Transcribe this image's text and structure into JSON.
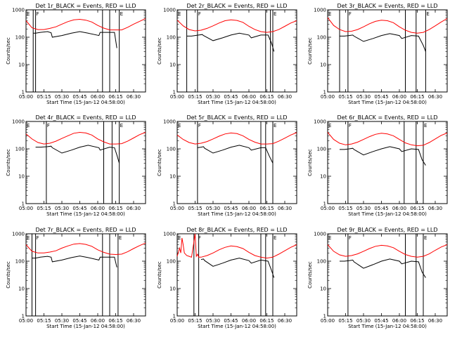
{
  "colors": {
    "events": "#000000",
    "lld": "#ff0000",
    "axes": "#000000",
    "background": "#ffffff"
  },
  "common": {
    "xlabel": "Start Time (15-Jan-12 04:58:00)",
    "ylabel": "Counts/sec",
    "x_ticks": [
      "05:00",
      "05:15",
      "05:30",
      "05:45",
      "06:00",
      "06:15",
      "06:30"
    ],
    "y_ticks": [
      "1",
      "10",
      "100",
      "1000"
    ],
    "ylim": [
      1,
      1000
    ],
    "y_scale": "log",
    "xlim": [
      "05:00",
      "06:40"
    ]
  },
  "chart_data": [
    {
      "type": "line",
      "title": "Det 1r_BLACK = Events, RED = LLD",
      "markers": [
        {
          "label": "E",
          "x": "05:00"
        },
        {
          "label": "F",
          "x": "05:08"
        },
        {
          "label": "E",
          "x": "06:18"
        }
      ],
      "vlines": [
        "05:06",
        "05:08",
        "06:04",
        "06:10",
        "06:18"
      ],
      "series": [
        {
          "name": "Events",
          "x": [
            "05:06",
            "05:08",
            "05:12",
            "05:18",
            "05:21",
            "05:22",
            "05:30",
            "05:38",
            "05:45",
            "05:52",
            "06:01",
            "06:02",
            "06:10",
            "06:14",
            "06:16"
          ],
          "values": [
            140,
            140,
            150,
            160,
            145,
            100,
            115,
            140,
            160,
            140,
            115,
            150,
            150,
            150,
            40
          ]
        },
        {
          "name": "LLD",
          "x": [
            "05:00",
            "05:05",
            "05:10",
            "05:15",
            "05:20",
            "05:25",
            "05:30",
            "05:35",
            "05:40",
            "05:45",
            "05:50",
            "05:55",
            "06:00",
            "06:05",
            "06:10",
            "06:15",
            "06:20",
            "06:25",
            "06:30",
            "06:35",
            "06:40"
          ],
          "values": [
            400,
            220,
            190,
            190,
            210,
            240,
            300,
            370,
            430,
            450,
            420,
            360,
            270,
            215,
            185,
            185,
            185,
            230,
            300,
            380,
            480
          ]
        }
      ]
    },
    {
      "type": "line",
      "title": "Det 2r_BLACK = Events, RED = LLD",
      "markers": [
        {
          "label": "E",
          "x": "05:00"
        },
        {
          "label": "F",
          "x": "05:17"
        },
        {
          "label": "E",
          "x": "06:20"
        }
      ],
      "vlines": [
        "05:08",
        "05:17",
        "06:14",
        "06:18",
        "06:20"
      ],
      "series": [
        {
          "name": "Events",
          "x": [
            "05:08",
            "05:12",
            "05:18",
            "05:21",
            "05:22",
            "05:30",
            "05:38",
            "05:45",
            "05:52",
            "06:00",
            "06:02",
            "06:10",
            "06:16",
            "06:19",
            "06:21"
          ],
          "values": [
            110,
            110,
            120,
            125,
            115,
            75,
            95,
            120,
            140,
            120,
            95,
            120,
            120,
            60,
            30
          ]
        },
        {
          "name": "LLD",
          "x": [
            "05:00",
            "05:05",
            "05:10",
            "05:15",
            "05:20",
            "05:25",
            "05:30",
            "05:35",
            "05:40",
            "05:45",
            "05:50",
            "05:55",
            "06:00",
            "06:05",
            "06:10",
            "06:15",
            "06:20",
            "06:25",
            "06:30",
            "06:35",
            "06:40"
          ],
          "values": [
            420,
            260,
            190,
            170,
            180,
            210,
            260,
            330,
            400,
            430,
            410,
            350,
            250,
            190,
            160,
            150,
            160,
            190,
            250,
            330,
            400
          ]
        }
      ]
    },
    {
      "type": "line",
      "title": "Det 3r_BLACK = Events, RED = LLD",
      "markers": [
        {
          "label": "E",
          "x": "05:00"
        },
        {
          "label": "F",
          "x": "05:17"
        },
        {
          "label": "E",
          "x": "06:22"
        }
      ],
      "vlines": [
        "05:10",
        "05:17",
        "06:05",
        "06:14",
        "06:22"
      ],
      "series": [
        {
          "name": "Events",
          "x": [
            "05:10",
            "05:14",
            "05:18",
            "05:21",
            "05:22",
            "05:30",
            "05:38",
            "05:45",
            "05:52",
            "06:00",
            "06:02",
            "06:10",
            "06:16",
            "06:20",
            "06:22"
          ],
          "values": [
            110,
            110,
            115,
            120,
            110,
            70,
            90,
            115,
            135,
            115,
            90,
            115,
            110,
            50,
            30
          ]
        },
        {
          "name": "LLD",
          "x": [
            "05:00",
            "05:05",
            "05:10",
            "05:15",
            "05:20",
            "05:25",
            "05:30",
            "05:35",
            "05:40",
            "05:45",
            "05:50",
            "05:55",
            "06:00",
            "06:05",
            "06:10",
            "06:15",
            "06:20",
            "06:25",
            "06:30",
            "06:35",
            "06:40"
          ],
          "values": [
            520,
            270,
            190,
            160,
            165,
            190,
            240,
            310,
            380,
            420,
            400,
            340,
            240,
            180,
            150,
            140,
            150,
            190,
            260,
            360,
            480
          ]
        }
      ]
    },
    {
      "type": "line",
      "title": "Det 4r_BLACK = Events, RED = LLD",
      "markers": [
        {
          "label": "E",
          "x": "05:00"
        },
        {
          "label": "F",
          "x": "05:17"
        },
        {
          "label": "E",
          "x": "06:18"
        }
      ],
      "vlines": [
        "05:17",
        "06:05",
        "06:12",
        "06:18"
      ],
      "series": [
        {
          "name": "Events",
          "x": [
            "05:08",
            "05:12",
            "05:18",
            "05:21",
            "05:22",
            "05:30",
            "05:38",
            "05:45",
            "05:52",
            "06:01",
            "06:02",
            "06:10",
            "06:14",
            "06:16",
            "06:18"
          ],
          "values": [
            115,
            115,
            120,
            125,
            110,
            70,
            90,
            115,
            135,
            110,
            90,
            115,
            110,
            60,
            30
          ]
        },
        {
          "name": "LLD",
          "x": [
            "05:00",
            "05:05",
            "05:10",
            "05:15",
            "05:20",
            "05:25",
            "05:30",
            "05:35",
            "05:40",
            "05:45",
            "05:50",
            "05:55",
            "06:00",
            "06:05",
            "06:10",
            "06:15",
            "06:20",
            "06:25",
            "06:30",
            "06:35",
            "06:40"
          ],
          "values": [
            350,
            230,
            170,
            150,
            160,
            190,
            240,
            300,
            370,
            400,
            380,
            320,
            230,
            180,
            150,
            150,
            155,
            190,
            250,
            330,
            400
          ]
        }
      ]
    },
    {
      "type": "line",
      "title": "Det 5r_BLACK = Events, RED = LLD",
      "markers": [
        {
          "label": "E",
          "x": "05:00"
        },
        {
          "label": "F",
          "x": "05:17"
        },
        {
          "label": "E",
          "x": "06:20"
        }
      ],
      "vlines": [
        "05:17",
        "06:10",
        "06:14",
        "06:20"
      ],
      "series": [
        {
          "name": "Events",
          "x": [
            "05:17",
            "05:20",
            "05:22",
            "05:23",
            "05:30",
            "05:38",
            "05:45",
            "05:52",
            "06:00",
            "06:02",
            "06:10",
            "06:14",
            "06:17",
            "06:20"
          ],
          "values": [
            110,
            115,
            120,
            105,
            70,
            90,
            115,
            135,
            110,
            90,
            110,
            110,
            55,
            30
          ]
        },
        {
          "name": "LLD",
          "x": [
            "05:00",
            "05:05",
            "05:10",
            "05:15",
            "05:20",
            "05:25",
            "05:30",
            "05:35",
            "05:40",
            "05:45",
            "05:50",
            "05:55",
            "06:00",
            "06:05",
            "06:10",
            "06:15",
            "06:20",
            "06:25",
            "06:30",
            "06:35",
            "06:40"
          ],
          "values": [
            320,
            220,
            170,
            150,
            160,
            185,
            230,
            290,
            350,
            380,
            360,
            300,
            220,
            175,
            150,
            150,
            155,
            190,
            245,
            320,
            390
          ]
        }
      ]
    },
    {
      "type": "line",
      "title": "Det 6r_BLACK = Events, RED = LLD",
      "markers": [
        {
          "label": "E",
          "x": "05:00"
        },
        {
          "label": "F",
          "x": "05:17"
        },
        {
          "label": "E",
          "x": "06:20"
        }
      ],
      "vlines": [
        "05:17",
        "06:04",
        "06:14",
        "06:20"
      ],
      "series": [
        {
          "name": "Events",
          "x": [
            "05:10",
            "05:14",
            "05:18",
            "05:21",
            "05:22",
            "05:30",
            "05:38",
            "05:45",
            "05:52",
            "06:00",
            "06:02",
            "06:10",
            "06:16",
            "06:19",
            "06:22"
          ],
          "values": [
            95,
            95,
            100,
            105,
            95,
            60,
            80,
            100,
            120,
            100,
            80,
            100,
            95,
            40,
            25
          ]
        },
        {
          "name": "LLD",
          "x": [
            "05:00",
            "05:05",
            "05:10",
            "05:15",
            "05:20",
            "05:25",
            "05:30",
            "05:35",
            "05:40",
            "05:45",
            "05:50",
            "05:55",
            "06:00",
            "06:05",
            "06:10",
            "06:15",
            "06:20",
            "06:25",
            "06:30",
            "06:35",
            "06:40"
          ],
          "values": [
            400,
            220,
            160,
            140,
            150,
            175,
            220,
            280,
            340,
            370,
            350,
            300,
            220,
            165,
            140,
            130,
            135,
            170,
            230,
            310,
            380
          ]
        }
      ]
    },
    {
      "type": "line",
      "title": "Det 7r_BLACK = Events, RED = LLD",
      "markers": [
        {
          "label": "E",
          "x": "05:00"
        },
        {
          "label": "F",
          "x": "05:08"
        },
        {
          "label": "E",
          "x": "06:17"
        }
      ],
      "vlines": [
        "05:05",
        "05:08",
        "06:04",
        "06:10",
        "06:17"
      ],
      "series": [
        {
          "name": "Events",
          "x": [
            "05:05",
            "05:08",
            "05:12",
            "05:18",
            "05:21",
            "05:22",
            "05:30",
            "05:38",
            "05:45",
            "05:52",
            "06:01",
            "06:02",
            "06:10",
            "06:14",
            "06:16"
          ],
          "values": [
            130,
            130,
            140,
            150,
            140,
            95,
            110,
            135,
            155,
            135,
            110,
            140,
            140,
            140,
            60
          ]
        },
        {
          "name": "LLD",
          "x": [
            "05:00",
            "05:05",
            "05:10",
            "05:15",
            "05:20",
            "05:25",
            "05:30",
            "05:35",
            "05:40",
            "05:45",
            "05:50",
            "05:55",
            "06:00",
            "06:05",
            "06:10",
            "06:15",
            "06:20",
            "06:25",
            "06:30",
            "06:35",
            "06:40"
          ],
          "values": [
            400,
            230,
            200,
            200,
            215,
            240,
            300,
            360,
            420,
            440,
            410,
            350,
            260,
            210,
            180,
            175,
            180,
            220,
            290,
            370,
            460
          ]
        }
      ]
    },
    {
      "type": "line",
      "title": "Det 8r_BLACK = Events, RED = LLD",
      "markers": [
        {
          "label": "E",
          "x": "05:00"
        },
        {
          "label": "F",
          "x": "05:17"
        },
        {
          "label": "E",
          "x": "06:20"
        }
      ],
      "vlines": [
        "05:14",
        "05:18",
        "06:10",
        "06:14",
        "06:20"
      ],
      "series": [
        {
          "name": "Events",
          "x": [
            "05:20",
            "05:22",
            "05:23",
            "05:30",
            "05:38",
            "05:45",
            "05:52",
            "06:00",
            "06:02",
            "06:10",
            "06:16",
            "06:19",
            "06:21"
          ],
          "values": [
            115,
            120,
            105,
            65,
            85,
            110,
            130,
            105,
            85,
            110,
            100,
            45,
            25
          ]
        },
        {
          "name": "LLD",
          "x": [
            "05:00",
            "05:02",
            "05:03",
            "05:04",
            "05:05",
            "05:06",
            "05:08",
            "05:10",
            "05:12",
            "05:14",
            "05:15",
            "05:16",
            "05:17",
            "05:18",
            "05:20",
            "05:25",
            "05:30",
            "05:35",
            "05:40",
            "05:45",
            "05:50",
            "05:55",
            "06:00",
            "06:05",
            "06:10",
            "06:15",
            "06:20",
            "06:25",
            "06:30",
            "06:35",
            "06:40"
          ],
          "values": [
            150,
            300,
            200,
            700,
            400,
            200,
            160,
            150,
            140,
            500,
            1000,
            150,
            180,
            140,
            140,
            160,
            200,
            260,
            320,
            360,
            340,
            290,
            210,
            160,
            140,
            130,
            140,
            180,
            240,
            320,
            400
          ]
        }
      ]
    },
    {
      "type": "line",
      "title": "Det 9r_BLACK = Events, RED = LLD",
      "markers": [
        {
          "label": "E",
          "x": "05:00"
        },
        {
          "label": "F",
          "x": "05:17"
        },
        {
          "label": "E",
          "x": "06:20"
        }
      ],
      "vlines": [
        "05:17",
        "06:05",
        "06:14",
        "06:20"
      ],
      "series": [
        {
          "name": "Events",
          "x": [
            "05:10",
            "05:14",
            "05:18",
            "05:21",
            "05:22",
            "05:30",
            "05:38",
            "05:45",
            "05:52",
            "06:00",
            "06:02",
            "06:10",
            "06:16",
            "06:19",
            "06:22"
          ],
          "values": [
            100,
            100,
            105,
            110,
            95,
            55,
            75,
            100,
            120,
            100,
            80,
            100,
            95,
            40,
            25
          ]
        },
        {
          "name": "LLD",
          "x": [
            "05:00",
            "05:05",
            "05:10",
            "05:15",
            "05:20",
            "05:25",
            "05:30",
            "05:35",
            "05:40",
            "05:45",
            "05:50",
            "05:55",
            "06:00",
            "06:05",
            "06:10",
            "06:15",
            "06:20",
            "06:25",
            "06:30",
            "06:35",
            "06:40"
          ],
          "values": [
            400,
            230,
            170,
            150,
            160,
            185,
            230,
            290,
            350,
            380,
            360,
            310,
            230,
            175,
            150,
            140,
            150,
            185,
            250,
            330,
            400
          ]
        }
      ]
    }
  ]
}
